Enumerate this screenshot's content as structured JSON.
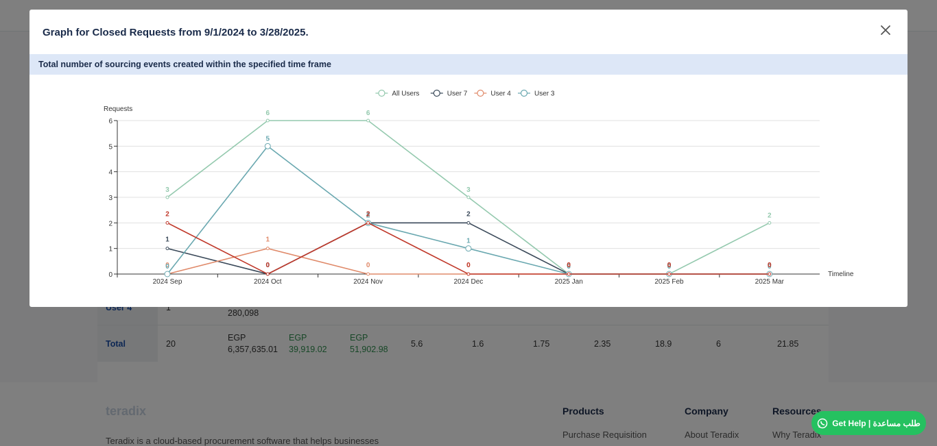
{
  "background": {
    "rows": [
      {
        "label": "User 4",
        "cells": [
          "1",
          "280,098"
        ]
      },
      {
        "label": "Total",
        "cells": [
          "20",
          "EGP",
          "6,357,635.01",
          "EGP",
          "39,919.02",
          "EGP",
          "51,902.98",
          "5.6",
          "1.6",
          "1.75",
          "2.35",
          "18.9",
          "6",
          "21.85"
        ]
      }
    ],
    "footer": {
      "logo": "teradix",
      "tagline": "Teradix is a cloud-based procurement software that helps businesses",
      "columns": [
        {
          "title": "Products",
          "link": "Purchase Requisition"
        },
        {
          "title": "Company",
          "link": "About Teradix"
        },
        {
          "title": "Resources",
          "link": "Why Teradix"
        }
      ]
    }
  },
  "help_button": {
    "label": "Get Help | طلب مساعدة",
    "icon": "whatsapp-icon",
    "color": "#25c160"
  },
  "modal": {
    "title": "Graph for Closed Requests from 9/1/2024 to 3/28/2025.",
    "close_icon": "close-icon",
    "subtitle": "Total number of sourcing events created within the specified time frame"
  },
  "chart_data": {
    "type": "line",
    "ylabel": "Requests",
    "xlabel": "Timeline",
    "ylim": [
      0,
      6
    ],
    "yticks": [
      0,
      1,
      2,
      3,
      4,
      5,
      6
    ],
    "categories": [
      "2024 Sep",
      "2024 Oct",
      "2024 Nov",
      "2024 Dec",
      "2025 Jan",
      "2025 Feb",
      "2025 Mar"
    ],
    "legend_position": "top-center",
    "grid": true,
    "series": [
      {
        "name": "All Users",
        "color": "#94c9ae",
        "values": [
          3,
          6,
          6,
          3,
          0,
          0,
          2
        ]
      },
      {
        "name": "User 7",
        "color": "#3b4a5a",
        "values": [
          1,
          0,
          2,
          2,
          0,
          0,
          0
        ]
      },
      {
        "name": "User 4",
        "color": "#e08a6a",
        "values": [
          0,
          1,
          0,
          0,
          0,
          0,
          0
        ]
      },
      {
        "name": "User 3",
        "color": "#6aa8b0",
        "values": [
          0,
          5,
          2,
          1,
          0,
          0,
          0
        ]
      },
      {
        "name": "",
        "color": "#c0392b",
        "values": [
          2,
          0,
          2,
          0,
          0,
          0,
          0
        ]
      }
    ]
  }
}
